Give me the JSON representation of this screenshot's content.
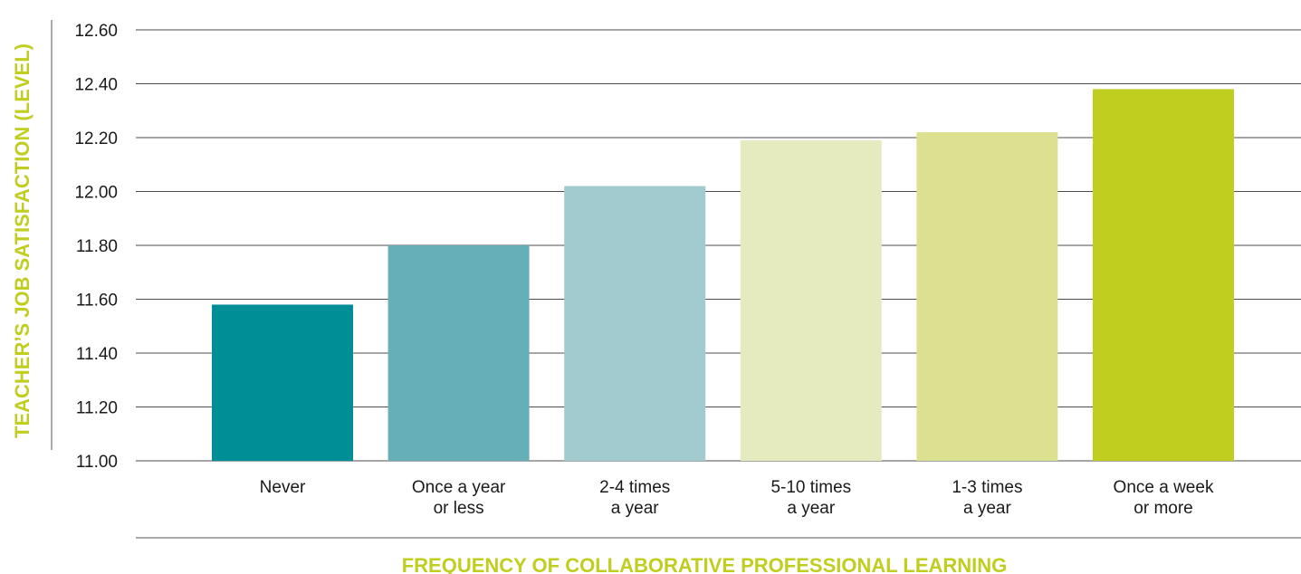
{
  "chart_data": {
    "type": "bar",
    "title": "",
    "xlabel": "FREQUENCY OF COLLABORATIVE PROFESSIONAL LEARNING",
    "ylabel": "TEACHER’S JOB SATISFACTION (LEVEL)",
    "ylim": [
      11.0,
      12.6
    ],
    "yticks": [
      "11.00",
      "11.20",
      "11.40",
      "11.60",
      "11.80",
      "12.00",
      "12.20",
      "12.40",
      "12.60"
    ],
    "grid": true,
    "legend": "none",
    "categories": [
      [
        "Never"
      ],
      [
        "Once a year",
        "or less"
      ],
      [
        "2-4 times",
        "a year"
      ],
      [
        "5-10 times",
        "a year"
      ],
      [
        "1-3 times",
        "a year"
      ],
      [
        "Once a week",
        "or more"
      ]
    ],
    "values": [
      11.58,
      11.8,
      12.02,
      12.19,
      12.22,
      12.38
    ],
    "colors": [
      "#008e96",
      "#66afb8",
      "#a2cbcf",
      "#e6ebbf",
      "#dce191",
      "#c0ce20"
    ],
    "label_color": "#c0ce20"
  }
}
